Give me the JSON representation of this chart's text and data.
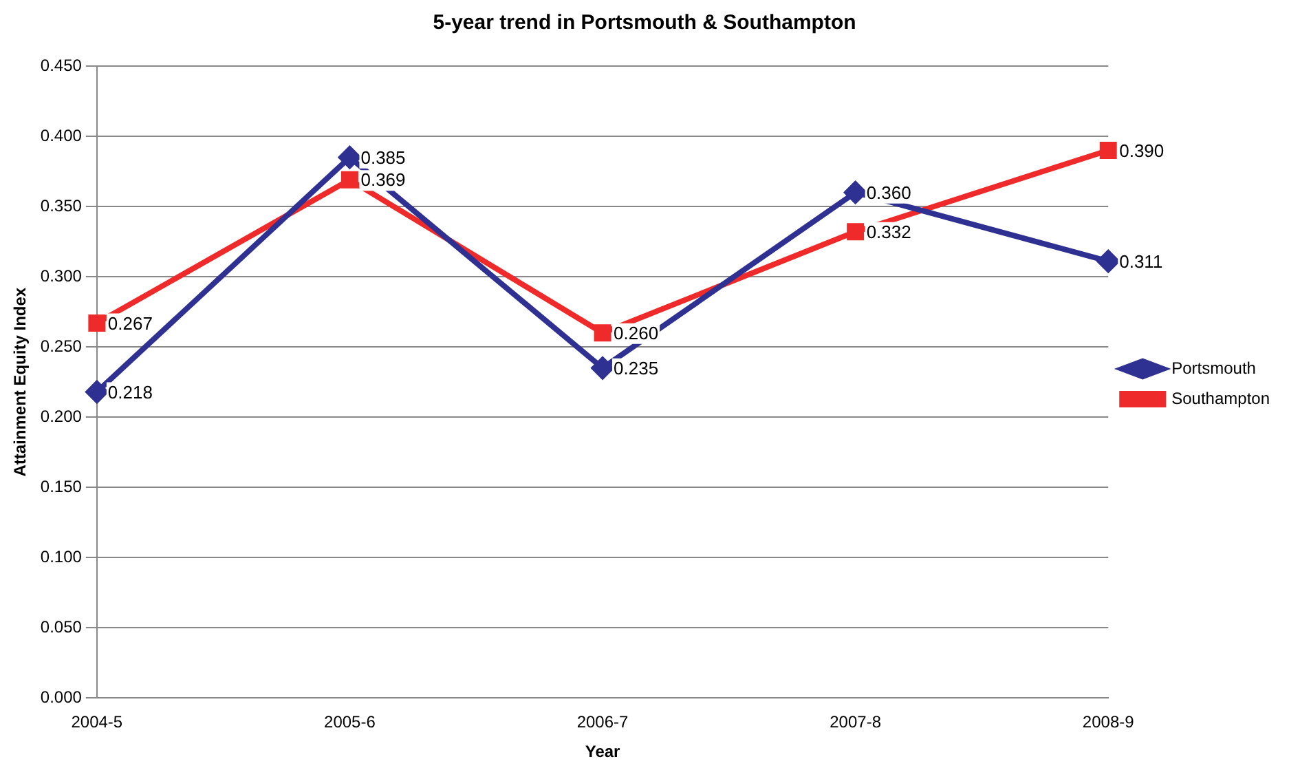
{
  "chart_data": {
    "type": "line",
    "title": "5-year trend in Portsmouth & Southampton",
    "xlabel": "Year",
    "ylabel": "Attainment Equity Index",
    "categories": [
      "2004-5",
      "2005-6",
      "2006-7",
      "2007-8",
      "2008-9"
    ],
    "series": [
      {
        "name": "Portsmouth",
        "color": "#2e3192",
        "marker": "diamond",
        "values": [
          0.218,
          0.385,
          0.235,
          0.36,
          0.311
        ],
        "value_labels": [
          "0.218",
          "0.385",
          "0.235",
          "0.360",
          "0.311"
        ]
      },
      {
        "name": "Southampton",
        "color": "#ee2a2a",
        "marker": "square",
        "values": [
          0.267,
          0.369,
          0.26,
          0.332,
          0.39
        ],
        "value_labels": [
          "0.267",
          "0.369",
          "0.260",
          "0.332",
          "0.390"
        ]
      }
    ],
    "ylim": [
      0,
      0.45
    ],
    "yticks": [
      {
        "value": 0,
        "label": "0.000"
      },
      {
        "value": 0.05,
        "label": "0.050"
      },
      {
        "value": 0.1,
        "label": "0.100"
      },
      {
        "value": 0.15,
        "label": "0.150"
      },
      {
        "value": 0.2,
        "label": "0.200"
      },
      {
        "value": 0.25,
        "label": "0.250"
      },
      {
        "value": 0.3,
        "label": "0.300"
      },
      {
        "value": 0.35,
        "label": "0.350"
      },
      {
        "value": 0.4,
        "label": "0.400"
      },
      {
        "value": 0.45,
        "label": "0.450"
      }
    ],
    "grid": "y",
    "legend": "right",
    "line_style": "solid"
  }
}
